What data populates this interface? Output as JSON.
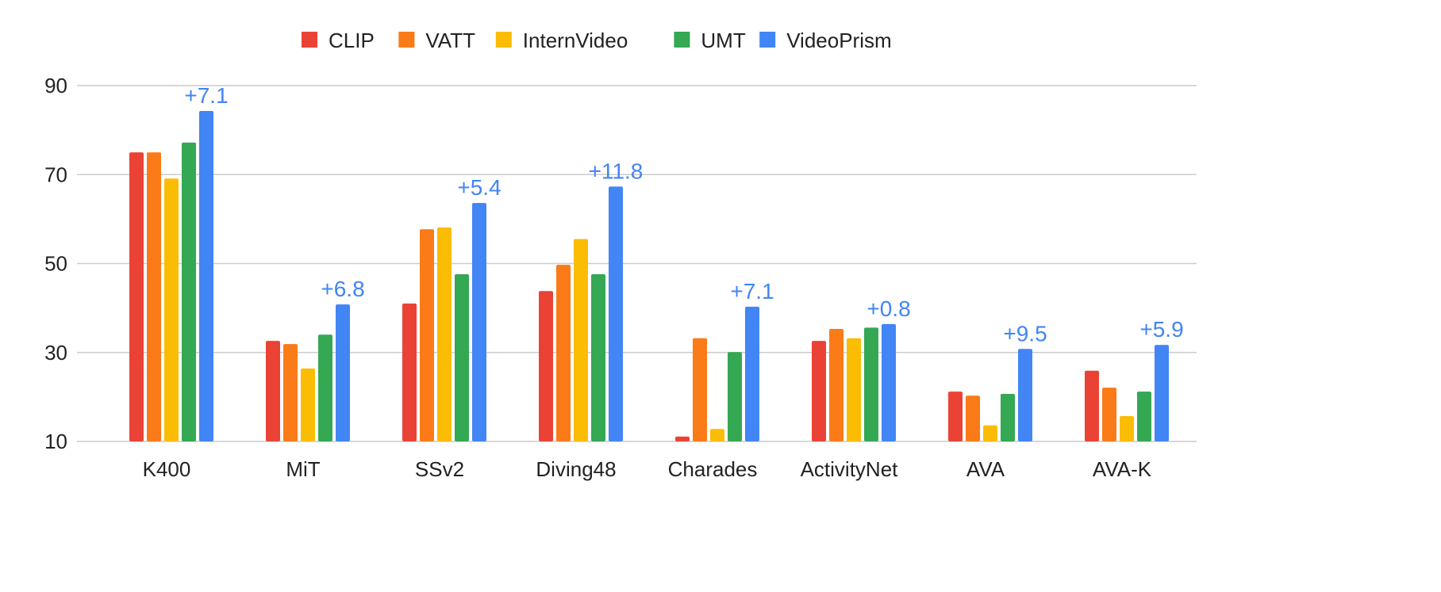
{
  "chart_data": {
    "type": "bar",
    "title": "",
    "xlabel": "",
    "ylabel": "",
    "ylim": [
      10,
      90
    ],
    "yticks": [
      10,
      30,
      50,
      70,
      90
    ],
    "grid": true,
    "legend_position": "top",
    "categories": [
      "K400",
      "MiT",
      "SSv2",
      "Diving48",
      "Charades",
      "ActivityNet",
      "AVA",
      "AVA-K"
    ],
    "series": [
      {
        "name": "CLIP",
        "color": "#ea4335",
        "values": [
          75.0,
          32.6,
          41.0,
          43.8,
          11.1,
          32.6,
          21.2,
          25.9
        ]
      },
      {
        "name": "VATT",
        "color": "#fa7b17",
        "values": [
          75.0,
          31.9,
          57.7,
          49.7,
          33.2,
          35.3,
          20.3,
          22.1
        ]
      },
      {
        "name": "InternVideo",
        "color": "#fbbc04",
        "values": [
          69.1,
          26.4,
          58.1,
          55.5,
          12.8,
          33.2,
          13.6,
          15.7
        ]
      },
      {
        "name": "UMT",
        "color": "#34a853",
        "values": [
          77.2,
          34.0,
          47.6,
          47.6,
          30.1,
          35.6,
          20.7,
          21.2
        ]
      },
      {
        "name": "VideoPrism",
        "color": "#4285f4",
        "values": [
          84.3,
          40.8,
          63.6,
          67.3,
          40.3,
          36.4,
          30.8,
          31.7
        ]
      }
    ],
    "annotations": [
      "+7.1",
      "+6.8",
      "+5.4",
      "+11.8",
      "+7.1",
      "+0.8",
      "+9.5",
      "+5.9"
    ],
    "annotation_color": "#4285f4"
  }
}
